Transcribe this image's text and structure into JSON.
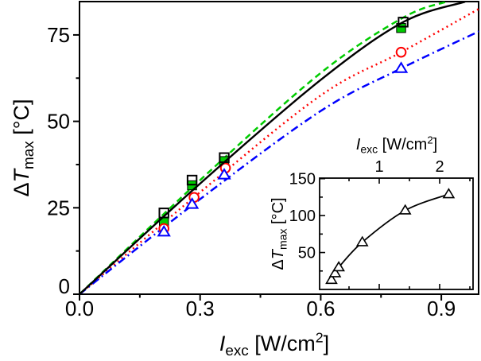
{
  "figure_bg": "#ffffff",
  "chart_data": [
    {
      "id": "main",
      "type": "scatter",
      "title": "",
      "xlabel": "I_exc [W/cm2]",
      "ylabel": "dT_max [degC]",
      "xlabel_parts": [
        {
          "t": "I",
          "style": "i"
        },
        {
          "t": "exc",
          "style": "sub"
        },
        {
          "t": " [W/cm",
          "style": "n"
        },
        {
          "t": "2",
          "style": "sup"
        },
        {
          "t": "]",
          "style": "n"
        }
      ],
      "ylabel_parts": [
        {
          "t": "Δ",
          "style": "n"
        },
        {
          "t": "T",
          "style": "i"
        },
        {
          "t": "max",
          "style": "sub"
        },
        {
          "t": " [°C]",
          "style": "n"
        }
      ],
      "x_axis": {
        "range": [
          0,
          0.993
        ],
        "major_ticks": [
          0,
          0.3,
          0.6,
          0.9
        ],
        "major_labels": [
          "0.0",
          "0.3",
          "0.6",
          "0.9"
        ],
        "minor_ticks": [
          0.15,
          0.45,
          0.75
        ]
      },
      "y_axis": {
        "range": [
          0,
          84.6
        ],
        "major_ticks": [
          0,
          25,
          50,
          75
        ],
        "major_labels": [
          "0",
          "25",
          "50",
          "75"
        ],
        "minor_ticks": [
          12.5,
          37.5,
          62.5
        ]
      },
      "grid": false,
      "legend": "none",
      "series": [
        {
          "name": "green filled squares",
          "marker": "square-filled",
          "color": "#00cc00",
          "line_style": "dashed",
          "points": [
            [
              0.21,
              21
            ],
            [
              0.28,
              31.5
            ],
            [
              0.36,
              38.5
            ],
            [
              0.8,
              77
            ]
          ],
          "fit_line": [
            [
              0,
              0
            ],
            [
              0.3,
              33
            ],
            [
              0.6,
              64
            ],
            [
              0.805,
              80
            ],
            [
              0.912,
              84.6
            ]
          ]
        },
        {
          "name": "red open circles",
          "marker": "circle-open",
          "color": "#ff0000",
          "line_style": "dotted",
          "points": [
            [
              0.21,
              19
            ],
            [
              0.285,
              28
            ],
            [
              0.363,
              36.5
            ],
            [
              0.8,
              70
            ]
          ],
          "fit_line": [
            [
              0,
              0
            ],
            [
              0.3,
              29.5
            ],
            [
              0.6,
              57.5
            ],
            [
              0.8,
              70
            ],
            [
              0.993,
              82.5
            ]
          ]
        },
        {
          "name": "blue open triangles",
          "marker": "triangle-open",
          "color": "#0000ff",
          "line_style": "dash-dot",
          "points": [
            [
              0.21,
              18
            ],
            [
              0.28,
              26
            ],
            [
              0.36,
              34.5
            ],
            [
              0.8,
              65.3
            ]
          ],
          "fit_line": [
            [
              0,
              0
            ],
            [
              0.3,
              27.5
            ],
            [
              0.6,
              53
            ],
            [
              0.8,
              65.3
            ],
            [
              0.993,
              76
            ]
          ]
        },
        {
          "name": "black open squares",
          "marker": "square-open",
          "color": "#000000",
          "line_style": "solid",
          "points": [
            [
              0.21,
              23.5
            ],
            [
              0.28,
              33
            ],
            [
              0.36,
              39.5
            ],
            [
              0.805,
              78.7
            ]
          ],
          "fit_line": [
            [
              0,
              0
            ],
            [
              0.3,
              32
            ],
            [
              0.6,
              62
            ],
            [
              0.805,
              78.7
            ],
            [
              0.959,
              84.6
            ]
          ]
        }
      ]
    },
    {
      "id": "inset",
      "type": "scatter",
      "title": "",
      "xlabel": "I_exc [W/cm2]",
      "ylabel": "dT_max [degC]",
      "xlabel_parts": [
        {
          "t": "I",
          "style": "i"
        },
        {
          "t": "exc",
          "style": "sub"
        },
        {
          "t": " [W/cm",
          "style": "n"
        },
        {
          "t": "2",
          "style": "sup"
        },
        {
          "t": "]",
          "style": "n"
        }
      ],
      "ylabel_parts": [
        {
          "t": "Δ",
          "style": "n"
        },
        {
          "t": "T",
          "style": "i"
        },
        {
          "t": "max",
          "style": "sub"
        },
        {
          "t": " [°C]",
          "style": "n"
        }
      ],
      "x_axis": {
        "range": [
          0.01,
          2.55
        ],
        "position": "top",
        "major_ticks": [
          1,
          2
        ],
        "major_labels": [
          "1",
          "2"
        ],
        "minor_ticks": [
          0.5,
          1.5,
          2.5
        ]
      },
      "y_axis": {
        "range": [
          0,
          150.7
        ],
        "major_ticks": [
          50,
          100,
          150
        ],
        "major_labels": [
          "50",
          "100",
          "150"
        ],
        "minor_ticks": [
          25,
          75,
          125
        ]
      },
      "grid": false,
      "legend": "none",
      "series": [
        {
          "name": "open triangles",
          "marker": "triangle-open",
          "color": "#000000",
          "line_style": "solid",
          "points": [
            [
              0.21,
              13
            ],
            [
              0.27,
              22
            ],
            [
              0.33,
              30
            ],
            [
              0.72,
              64
            ],
            [
              1.43,
              107
            ],
            [
              2.15,
              129
            ]
          ],
          "fit_line": [
            [
              0.21,
              13
            ],
            [
              0.27,
              22
            ],
            [
              0.33,
              30
            ],
            [
              0.72,
              64
            ],
            [
              1.43,
              107
            ],
            [
              2.15,
              129
            ]
          ]
        }
      ]
    }
  ]
}
